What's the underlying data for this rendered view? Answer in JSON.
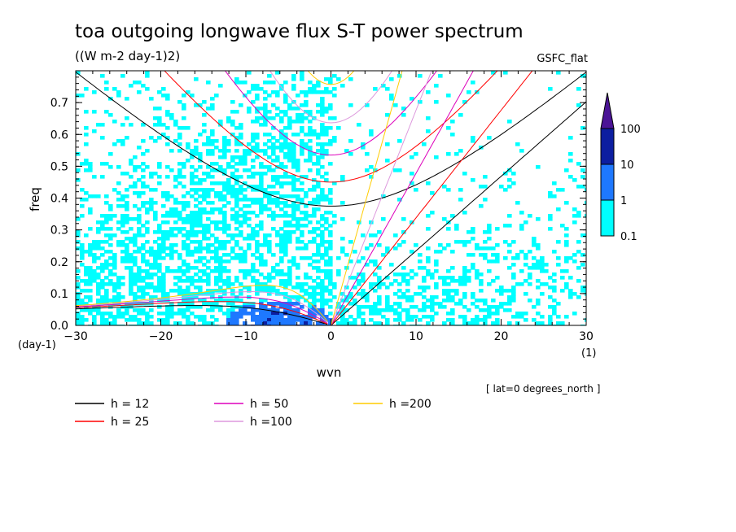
{
  "chart_data": {
    "type": "heatmap",
    "title": "toa outgoing longwave flux S-T power spectrum",
    "subtitle": "((W m-2 day-1)2)",
    "dataset_label": "GSFC_flat",
    "xlabel": "wvn",
    "ylabel": "freq",
    "x_unit": "(1)",
    "y_unit": "(day-1)",
    "xlim": [
      -30,
      30
    ],
    "ylim": [
      0.0,
      0.8
    ],
    "x_ticks": [
      "-30",
      "-20",
      "-10",
      "0",
      "10",
      "20",
      "30"
    ],
    "y_ticks": [
      "0.0",
      "0.1",
      "0.2",
      "0.3",
      "0.4",
      "0.5",
      "0.6",
      "0.7"
    ],
    "grid": false,
    "annotation": "[ lat=0 degrees_north ]",
    "colorbar": {
      "levels": [
        "0.1",
        "1",
        "10",
        "100"
      ],
      "colors": [
        "#00ffff",
        "#1e78ff",
        "#0c1ea0",
        "#4b1496"
      ]
    },
    "dispersion_legend": [
      {
        "label": "h = 12",
        "h": 12,
        "color": "#000000"
      },
      {
        "label": "h = 25",
        "h": 25,
        "color": "#ff0000"
      },
      {
        "label": "h = 50",
        "h": 50,
        "color": "#dd00bb"
      },
      {
        "label": "h =100",
        "h": 100,
        "color": "#dd99dd"
      },
      {
        "label": "h =200",
        "h": 200,
        "color": "#ffcc00"
      }
    ],
    "legend_placement": "bottom"
  }
}
